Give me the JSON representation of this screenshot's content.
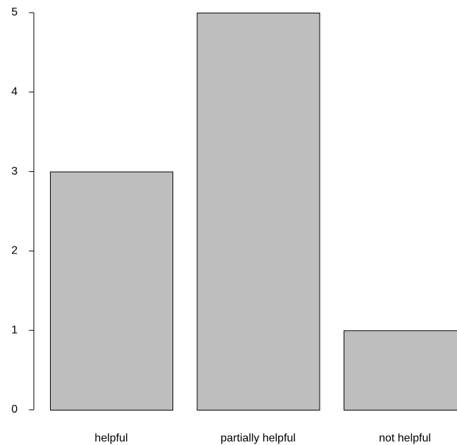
{
  "chart_data": {
    "type": "bar",
    "categories": [
      "helpful",
      "partially helpful",
      "not helpful"
    ],
    "values": [
      3,
      5,
      1
    ],
    "ylim": [
      0,
      5
    ],
    "yticks": [
      "0",
      "1",
      "2",
      "3",
      "4",
      "5"
    ],
    "grid": false,
    "bar_color": "#bebebe",
    "bar_border_color": "#000000"
  }
}
